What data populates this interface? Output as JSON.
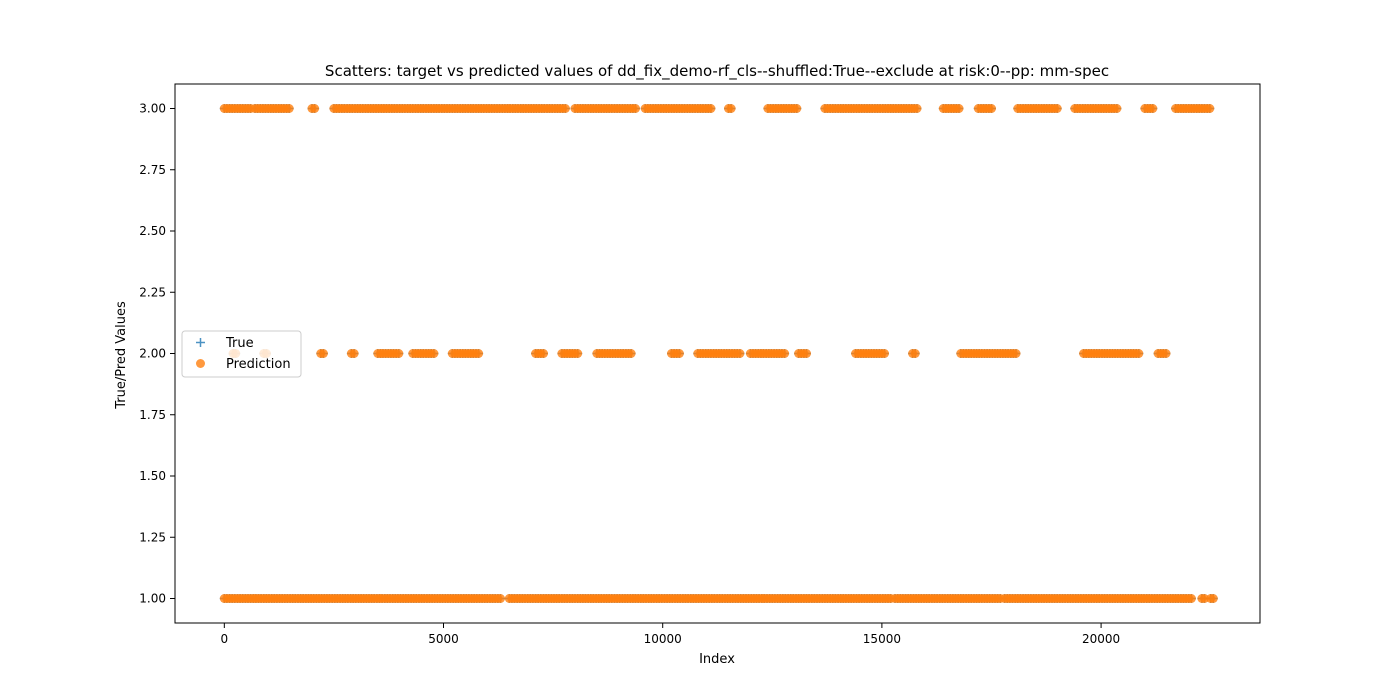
{
  "chart_data": {
    "type": "scatter",
    "title": "Scatters: target vs predicted values of dd_fix_demo-rf_cls--shuffled:True--exclude at risk:0--pp: mm-spec",
    "xlabel": "Index",
    "ylabel": "True/Pred Values",
    "xlim": [
      -1125,
      23625
    ],
    "ylim": [
      0.9,
      3.1
    ],
    "x_ticks": [
      0,
      5000,
      10000,
      15000,
      20000
    ],
    "x_tick_labels": [
      "0",
      "5000",
      "10000",
      "15000",
      "20000"
    ],
    "y_ticks": [
      1.0,
      1.25,
      1.5,
      1.75,
      2.0,
      2.25,
      2.5,
      2.75,
      3.0
    ],
    "y_tick_labels": [
      "1.00",
      "1.25",
      "1.50",
      "1.75",
      "2.00",
      "2.25",
      "2.50",
      "2.75",
      "3.00"
    ],
    "grid": false,
    "legend": {
      "placement": "center-left",
      "entries": [
        "True",
        "Prediction"
      ]
    },
    "series": [
      {
        "name": "True",
        "marker": "plus",
        "color": "#1f77b4",
        "segments": [
          {
            "y": 3.0,
            "ranges": [
              [
                0,
                600
              ],
              [
                700,
                1500
              ],
              [
                2000,
                2100
              ],
              [
                2500,
                7800
              ],
              [
                8000,
                9400
              ],
              [
                9600,
                11100
              ],
              [
                11500,
                11600
              ],
              [
                12400,
                13100
              ],
              [
                13700,
                15800
              ],
              [
                16400,
                16800
              ],
              [
                17200,
                17500
              ],
              [
                18100,
                19000
              ],
              [
                19400,
                20400
              ],
              [
                21000,
                21200
              ],
              [
                21700,
                22500
              ]
            ]
          },
          {
            "y": 2.0,
            "ranges": [
              [
                200,
                300
              ],
              [
                900,
                1000
              ],
              [
                2200,
                2300
              ],
              [
                2900,
                3000
              ],
              [
                3500,
                4000
              ],
              [
                4300,
                4800
              ],
              [
                5200,
                5800
              ],
              [
                7100,
                7300
              ],
              [
                7700,
                8100
              ],
              [
                8500,
                9300
              ],
              [
                10200,
                10400
              ],
              [
                10800,
                11800
              ],
              [
                12000,
                12800
              ],
              [
                13100,
                13300
              ],
              [
                14400,
                15100
              ],
              [
                15700,
                15800
              ],
              [
                16800,
                18100
              ],
              [
                19600,
                20900
              ],
              [
                21300,
                21500
              ]
            ]
          },
          {
            "y": 1.0,
            "ranges": [
              [
                0,
                6300
              ],
              [
                6500,
                15200
              ],
              [
                15300,
                17700
              ],
              [
                17800,
                22100
              ],
              [
                22300,
                22400
              ],
              [
                22500,
                22600
              ]
            ]
          }
        ]
      },
      {
        "name": "Prediction",
        "marker": "circle",
        "color": "#ff7f0e",
        "segments": [
          {
            "y": 3.0,
            "ranges": [
              [
                0,
                600
              ],
              [
                700,
                1500
              ],
              [
                2000,
                2100
              ],
              [
                2500,
                7800
              ],
              [
                8000,
                9400
              ],
              [
                9600,
                11100
              ],
              [
                11500,
                11600
              ],
              [
                12400,
                13100
              ],
              [
                13700,
                15800
              ],
              [
                16400,
                16800
              ],
              [
                17200,
                17500
              ],
              [
                18100,
                19000
              ],
              [
                19400,
                20400
              ],
              [
                21000,
                21200
              ],
              [
                21700,
                22500
              ]
            ]
          },
          {
            "y": 2.0,
            "ranges": [
              [
                200,
                300
              ],
              [
                900,
                1000
              ],
              [
                2200,
                2300
              ],
              [
                2900,
                3000
              ],
              [
                3500,
                4000
              ],
              [
                4300,
                4800
              ],
              [
                5200,
                5800
              ],
              [
                7100,
                7300
              ],
              [
                7700,
                8100
              ],
              [
                8500,
                9300
              ],
              [
                10200,
                10400
              ],
              [
                10800,
                11800
              ],
              [
                12000,
                12800
              ],
              [
                13100,
                13300
              ],
              [
                14400,
                15100
              ],
              [
                15700,
                15800
              ],
              [
                16800,
                18100
              ],
              [
                19600,
                20900
              ],
              [
                21300,
                21500
              ]
            ]
          },
          {
            "y": 1.0,
            "ranges": [
              [
                0,
                6300
              ],
              [
                6500,
                15200
              ],
              [
                15300,
                17700
              ],
              [
                17800,
                22100
              ],
              [
                22300,
                22400
              ],
              [
                22500,
                22600
              ]
            ]
          }
        ]
      }
    ]
  }
}
